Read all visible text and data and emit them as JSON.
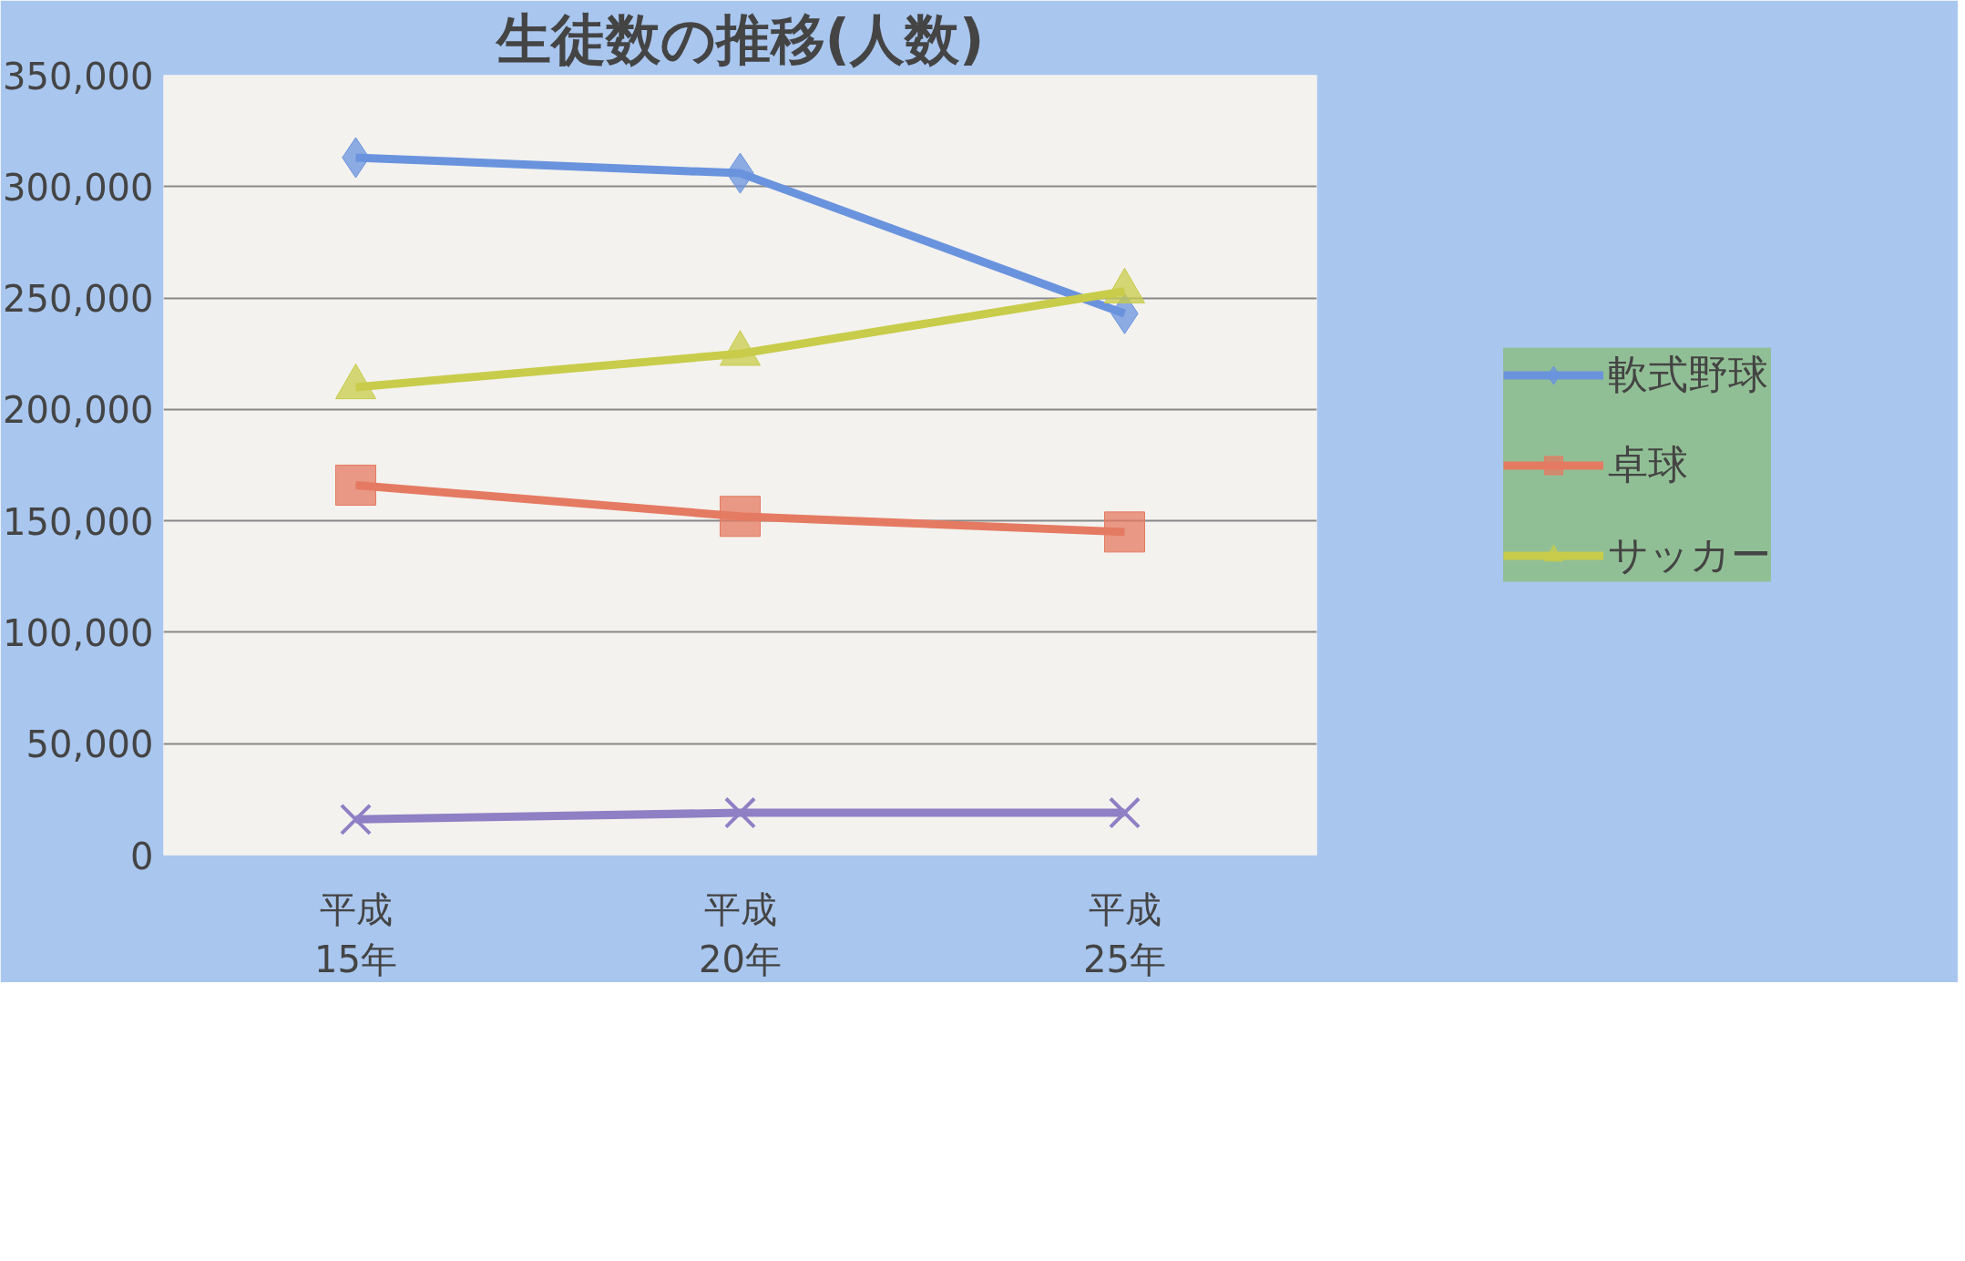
{
  "chart_data": {
    "type": "line",
    "title": "生徒数の推移(人数)",
    "categories": [
      "平成\n15年",
      "平成\n20年",
      "平成\n25年"
    ],
    "series": [
      {
        "name": "軟式野球",
        "color": "#6a93de",
        "marker": "diamond",
        "values": [
          313000,
          306000,
          243000
        ]
      },
      {
        "name": "卓球",
        "color": "#e57a62",
        "marker": "square",
        "values": [
          166000,
          152000,
          145000
        ]
      },
      {
        "name": "サッカー",
        "color": "#c8cc4a",
        "marker": "triangle",
        "values": [
          210000,
          225000,
          253000
        ]
      },
      {
        "color": "#8f7fc4",
        "marker": "cross",
        "values": [
          16000,
          19000,
          19000
        ]
      }
    ],
    "ylim": [
      0,
      350000
    ],
    "yticks": [
      {
        "value": 0,
        "label": "0"
      },
      {
        "value": 50000,
        "label": "50,000"
      },
      {
        "value": 100000,
        "label": "100,000"
      },
      {
        "value": 150000,
        "label": "150,000"
      },
      {
        "value": 200000,
        "label": "200,000"
      },
      {
        "value": 250000,
        "label": "250,000"
      },
      {
        "value": 300000,
        "label": "300,000"
      },
      {
        "value": 350000,
        "label": "350,000"
      }
    ],
    "grid": "y",
    "legend": "right"
  }
}
